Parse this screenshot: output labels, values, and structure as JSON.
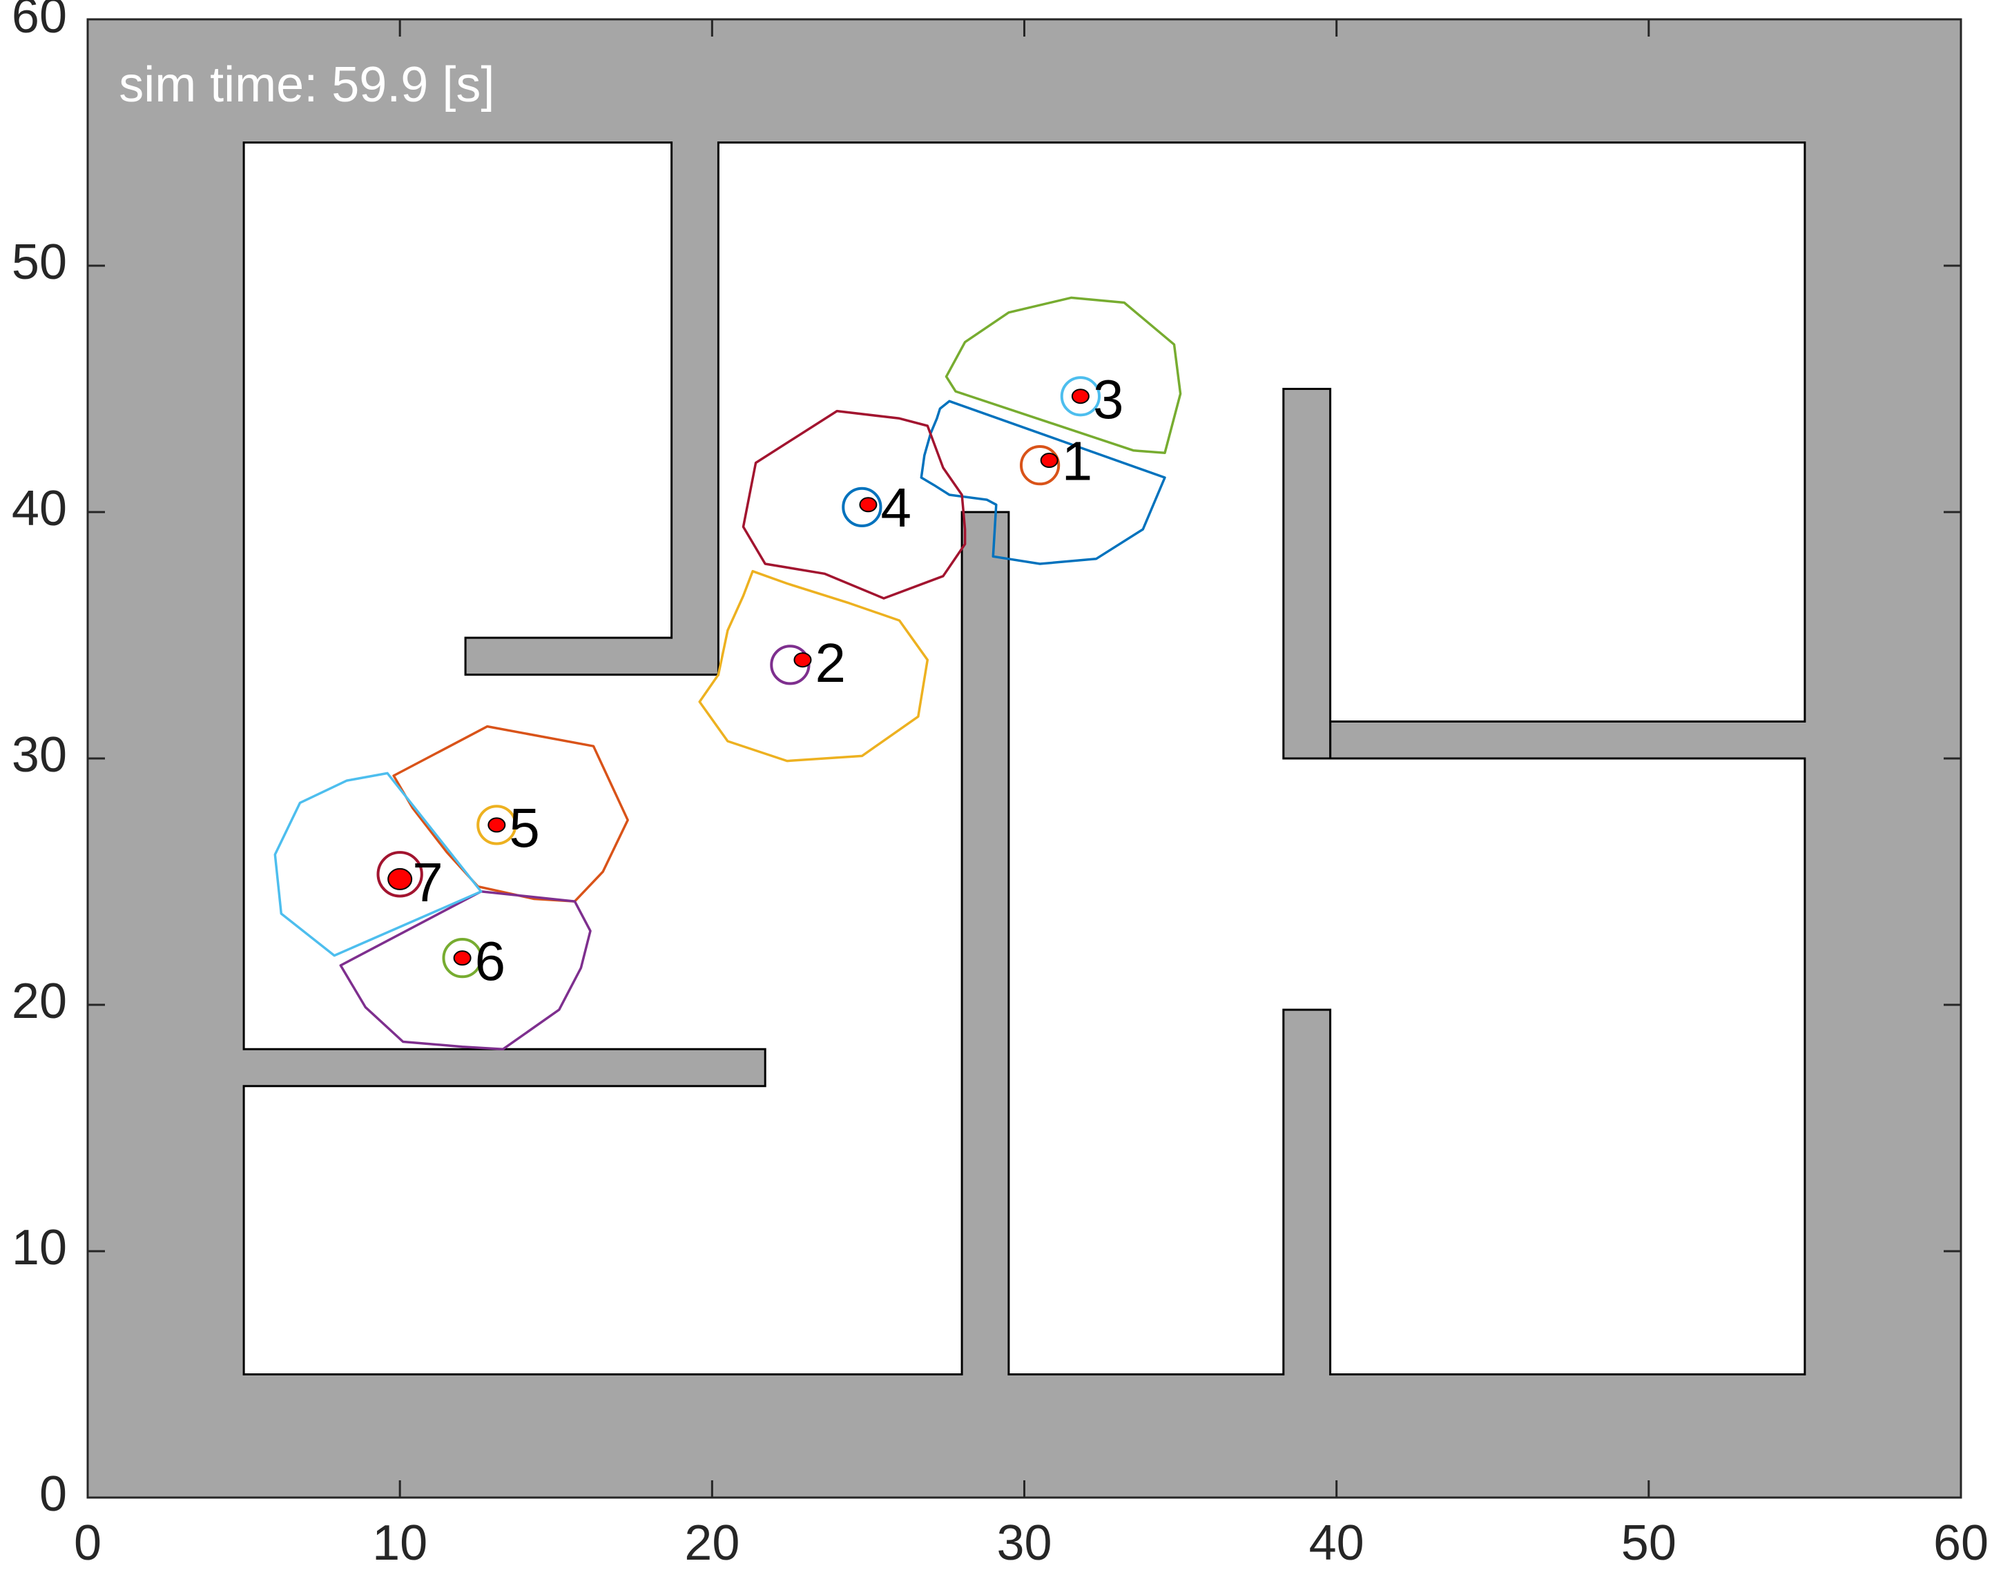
{
  "chart_data": {
    "type": "scatter",
    "annotation": {
      "prefix": "sim time:",
      "value": "59.9",
      "unit": "[s]"
    },
    "xlim": [
      0,
      60
    ],
    "ylim": [
      0,
      60
    ],
    "xticks": [
      0,
      10,
      20,
      30,
      40,
      50,
      60
    ],
    "yticks": [
      0,
      10,
      20,
      30,
      40,
      50,
      60
    ],
    "grid": false,
    "colors": {
      "obstacle": "#a6a6a6",
      "free_space": "#ffffff",
      "robot_dot": "#ff0000",
      "palette": [
        "#0072bd",
        "#d95319",
        "#edb120",
        "#7e2f8e",
        "#77ac30",
        "#4dbeee",
        "#a2142f"
      ]
    },
    "map": {
      "outer": [
        [
          0,
          0
        ],
        [
          60,
          0
        ],
        [
          60,
          60
        ],
        [
          0,
          60
        ]
      ],
      "free_regions": [
        [
          [
            5,
            5
          ],
          [
            28,
            5
          ],
          [
            28,
            40
          ],
          [
            29.5,
            40
          ],
          [
            29.5,
            5
          ],
          [
            38.3,
            5
          ],
          [
            38.3,
            19.8
          ],
          [
            39.8,
            19.8
          ],
          [
            39.8,
            5
          ],
          [
            55,
            5
          ],
          [
            55,
            30
          ],
          [
            39.8,
            30
          ],
          [
            39.8,
            31.5
          ],
          [
            55,
            31.5
          ],
          [
            55,
            55
          ],
          [
            20.2,
            55
          ],
          [
            20.2,
            33.4
          ],
          [
            12.1,
            33.4
          ],
          [
            12.1,
            34.9
          ],
          [
            18.7,
            34.9
          ],
          [
            18.7,
            55
          ],
          [
            5,
            55
          ],
          [
            5,
            18.2
          ],
          [
            21.7,
            18.2
          ],
          [
            21.7,
            16.7
          ],
          [
            5,
            16.7
          ]
        ],
        [
          [
            39.8,
            30
          ],
          [
            39.8,
            45
          ],
          [
            38.3,
            45
          ],
          [
            38.3,
            30
          ]
        ]
      ]
    },
    "robots": [
      {
        "id": "1",
        "x": 30.8,
        "y": 42.1,
        "label_x": 31.2,
        "label_y": 41.9,
        "ring_color": "#d95319",
        "ring_dx": -0.3,
        "ring_dy": -0.2,
        "ring_r": 0.6,
        "cell_color": "#0072bd",
        "cell": [
          [
            27.3,
            44.2
          ],
          [
            27.6,
            44.5
          ],
          [
            34.5,
            41.4
          ],
          [
            33.8,
            39.3
          ],
          [
            32.3,
            38.1
          ],
          [
            30.5,
            37.9
          ],
          [
            29.0,
            38.2
          ],
          [
            29.1,
            40.3
          ],
          [
            28.8,
            40.5
          ],
          [
            27.6,
            40.7
          ],
          [
            27.1,
            41.1
          ],
          [
            26.7,
            41.4
          ],
          [
            26.8,
            42.3
          ],
          [
            27.0,
            43.2
          ],
          [
            27.2,
            43.8
          ]
        ]
      },
      {
        "id": "2",
        "x": 22.9,
        "y": 34.0,
        "label_x": 23.3,
        "label_y": 33.7,
        "ring_color": "#7e2f8e",
        "ring_dx": -0.4,
        "ring_dy": -0.2,
        "ring_r": 0.6,
        "cell_color": "#edb120",
        "cell": [
          [
            21.3,
            37.6
          ],
          [
            22.4,
            37.1
          ],
          [
            24.4,
            36.3
          ],
          [
            26.0,
            35.6
          ],
          [
            26.9,
            34.0
          ],
          [
            26.6,
            31.7
          ],
          [
            24.8,
            30.1
          ],
          [
            22.4,
            29.9
          ],
          [
            20.5,
            30.7
          ],
          [
            19.6,
            32.3
          ],
          [
            20.2,
            33.4
          ],
          [
            20.5,
            35.2
          ],
          [
            21.0,
            36.6
          ]
        ]
      },
      {
        "id": "3",
        "x": 31.8,
        "y": 44.7,
        "label_x": 32.2,
        "label_y": 44.4,
        "ring_color": "#4dbeee",
        "ring_dx": 0,
        "ring_dy": 0,
        "ring_r": 0.6,
        "cell_color": "#77ac30",
        "cell": [
          [
            27.5,
            45.5
          ],
          [
            27.8,
            44.9
          ],
          [
            33.5,
            42.5
          ],
          [
            34.5,
            42.4
          ],
          [
            35.0,
            44.8
          ],
          [
            34.8,
            46.8
          ],
          [
            33.2,
            48.5
          ],
          [
            31.5,
            48.7
          ],
          [
            29.5,
            48.1
          ],
          [
            28.1,
            46.9
          ],
          [
            27.5,
            45.5
          ]
        ]
      },
      {
        "id": "4",
        "x": 25.0,
        "y": 40.3,
        "label_x": 25.4,
        "label_y": 40.0,
        "ring_color": "#0072bd",
        "ring_dx": -0.2,
        "ring_dy": -0.1,
        "ring_r": 0.6,
        "cell_color": "#a2142f",
        "cell": [
          [
            26.9,
            43.5
          ],
          [
            27.4,
            41.8
          ],
          [
            28.0,
            40.7
          ],
          [
            28.1,
            39.3
          ],
          [
            28.1,
            38.7
          ],
          [
            27.4,
            37.4
          ],
          [
            25.5,
            36.5
          ],
          [
            23.6,
            37.5
          ],
          [
            21.7,
            37.9
          ],
          [
            21.0,
            39.4
          ],
          [
            21.4,
            42.0
          ],
          [
            24.0,
            44.1
          ],
          [
            26.0,
            43.8
          ]
        ]
      },
      {
        "id": "5",
        "x": 13.1,
        "y": 27.3,
        "label_x": 13.5,
        "label_y": 27.0,
        "ring_color": "#edb120",
        "ring_dx": 0,
        "ring_dy": 0,
        "ring_r": 0.6,
        "cell_color": "#d95319",
        "cell": [
          [
            9.8,
            29.3
          ],
          [
            12.8,
            31.3
          ],
          [
            16.2,
            30.5
          ],
          [
            17.3,
            27.5
          ],
          [
            16.5,
            25.4
          ],
          [
            15.6,
            24.2
          ],
          [
            14.3,
            24.3
          ],
          [
            12.5,
            24.8
          ],
          [
            11.5,
            26.2
          ],
          [
            10.4,
            28.0
          ]
        ]
      },
      {
        "id": "6",
        "x": 12.0,
        "y": 21.9,
        "label_x": 12.4,
        "label_y": 21.6,
        "ring_color": "#77ac30",
        "ring_dx": 0,
        "ring_dy": 0,
        "ring_r": 0.6,
        "cell_color": "#7e2f8e",
        "cell": [
          [
            8.1,
            21.6
          ],
          [
            12.6,
            24.6
          ],
          [
            15.6,
            24.2
          ],
          [
            16.1,
            23.0
          ],
          [
            15.8,
            21.5
          ],
          [
            15.1,
            19.8
          ],
          [
            13.3,
            18.2
          ],
          [
            12.0,
            18.3
          ],
          [
            10.1,
            18.5
          ],
          [
            8.9,
            19.9
          ]
        ]
      },
      {
        "id": "7",
        "x": 10.0,
        "y": 25.1,
        "label_x": 10.4,
        "label_y": 24.8,
        "ring_color": "#a2142f",
        "ring_dx": 0,
        "ring_dy": 0.2,
        "ring_r": 0.7,
        "cell_color": "#4dbeee",
        "cell": [
          [
            9.6,
            29.4
          ],
          [
            12.6,
            24.6
          ],
          [
            7.9,
            22.0
          ],
          [
            6.2,
            23.7
          ],
          [
            6.0,
            26.1
          ],
          [
            6.8,
            28.2
          ],
          [
            8.3,
            29.1
          ]
        ]
      }
    ]
  }
}
